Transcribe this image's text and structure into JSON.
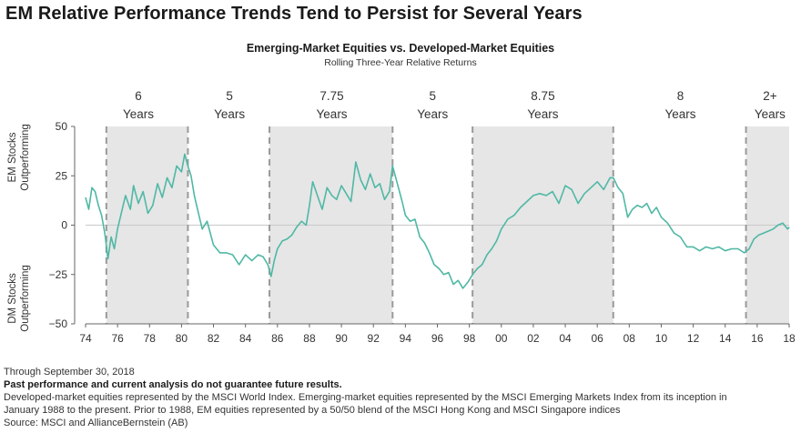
{
  "headline": "EM Relative Performance Trends Tend to Persist for Several Years",
  "chart_data": {
    "type": "line",
    "title": "Emerging-Market Equities vs. Developed-Market Equities",
    "subtitle": "Rolling Three-Year Relative Returns",
    "ylabel_top": [
      "EM Stocks",
      "Outperforming"
    ],
    "ylabel_bottom": [
      "DM Stocks",
      "Outperforming"
    ],
    "xlim": [
      1974,
      2018
    ],
    "ylim": [
      -50,
      50
    ],
    "yticks": [
      50,
      25,
      0,
      -25,
      -50
    ],
    "ytick_labels": [
      "50",
      "25",
      "0",
      "−25",
      "−50"
    ],
    "xticks": [
      1974,
      1976,
      1978,
      1980,
      1982,
      1984,
      1986,
      1988,
      1990,
      1992,
      1994,
      1996,
      1998,
      2000,
      2002,
      2004,
      2006,
      2008,
      2010,
      2012,
      2014,
      2016,
      2018
    ],
    "xtick_labels": [
      "74",
      "76",
      "78",
      "80",
      "82",
      "84",
      "86",
      "88",
      "90",
      "92",
      "94",
      "96",
      "98",
      "00",
      "02",
      "04",
      "06",
      "08",
      "10",
      "12",
      "14",
      "16",
      "18"
    ],
    "line_color": "#4fb8a5",
    "shade_color": "#e6e6e6",
    "shaded_periods": [
      [
        1975.3,
        1980.4
      ],
      [
        1985.5,
        1993.2
      ],
      [
        1998.2,
        2007.0
      ],
      [
        2015.3,
        2018.0
      ]
    ],
    "period_labels": [
      {
        "x": 1977.3,
        "line1": "6",
        "line2": "Years"
      },
      {
        "x": 1983.0,
        "line1": "5",
        "line2": "Years"
      },
      {
        "x": 1989.4,
        "line1": "7.75",
        "line2": "Years"
      },
      {
        "x": 1995.7,
        "line1": "5",
        "line2": "Years"
      },
      {
        "x": 2002.6,
        "line1": "8.75",
        "line2": "Years"
      },
      {
        "x": 2011.2,
        "line1": "8",
        "line2": "Years"
      },
      {
        "x": 2016.8,
        "line1": "2+",
        "line2": "Years"
      }
    ],
    "series": [
      {
        "x": [
          1974.0,
          1974.2,
          1974.4,
          1974.6,
          1974.8,
          1975.0,
          1975.2,
          1975.4,
          1975.6,
          1975.8,
          1976.0,
          1976.2,
          1976.5,
          1976.8,
          1977.0,
          1977.3,
          1977.6,
          1977.9,
          1978.2,
          1978.5,
          1978.8,
          1979.1,
          1979.4,
          1979.7,
          1980.0,
          1980.2,
          1980.4,
          1980.6,
          1980.8,
          1981.0,
          1981.3,
          1981.6,
          1982.0,
          1982.4,
          1982.8,
          1983.2,
          1983.6,
          1984.0,
          1984.4,
          1984.8,
          1985.1,
          1985.4,
          1985.6,
          1985.8,
          1986.0,
          1986.3,
          1986.6,
          1986.9,
          1987.2,
          1987.5,
          1987.8,
          1988.0,
          1988.2,
          1988.5,
          1988.8,
          1989.1,
          1989.4,
          1989.7,
          1990.0,
          1990.3,
          1990.6,
          1990.9,
          1991.2,
          1991.5,
          1991.8,
          1992.1,
          1992.4,
          1992.7,
          1993.0,
          1993.2,
          1993.4,
          1993.6,
          1993.8,
          1994.0,
          1994.3,
          1994.6,
          1994.9,
          1995.2,
          1995.5,
          1995.8,
          1996.1,
          1996.4,
          1996.7,
          1997.0,
          1997.3,
          1997.6,
          1997.9,
          1998.2,
          1998.5,
          1998.8,
          1999.1,
          1999.4,
          1999.7,
          2000.0,
          2000.4,
          2000.8,
          2001.2,
          2001.6,
          2002.0,
          2002.4,
          2002.8,
          2003.2,
          2003.6,
          2004.0,
          2004.4,
          2004.8,
          2005.2,
          2005.6,
          2006.0,
          2006.4,
          2006.8,
          2007.0,
          2007.3,
          2007.6,
          2007.9,
          2008.2,
          2008.5,
          2008.8,
          2009.1,
          2009.4,
          2009.7,
          2010.0,
          2010.4,
          2010.8,
          2011.2,
          2011.6,
          2012.0,
          2012.4,
          2012.8,
          2013.2,
          2013.6,
          2014.0,
          2014.4,
          2014.8,
          2015.2,
          2015.5,
          2015.8,
          2016.1,
          2016.4,
          2016.7,
          2017.0,
          2017.3,
          2017.6,
          2017.9,
          2018.0
        ],
        "y": [
          14,
          8,
          19,
          17,
          10,
          5,
          -4,
          -17,
          -6,
          -12,
          -2,
          5,
          15,
          8,
          20,
          11,
          17,
          6,
          10,
          21,
          14,
          24,
          19,
          30,
          27,
          36,
          30,
          25,
          15,
          8,
          -2,
          2,
          -10,
          -14,
          -14,
          -15,
          -20,
          -15,
          -18,
          -15,
          -16,
          -20,
          -26,
          -18,
          -12,
          -8,
          -7,
          -5,
          -1,
          2,
          0,
          10,
          22,
          15,
          8,
          19,
          15,
          13,
          20,
          16,
          12,
          32,
          23,
          18,
          26,
          19,
          21,
          13,
          17,
          30,
          24,
          18,
          12,
          5,
          2,
          3,
          -6,
          -9,
          -14,
          -20,
          -22,
          -25,
          -24,
          -30,
          -28,
          -32,
          -29,
          -25,
          -22,
          -20,
          -15,
          -12,
          -8,
          -2,
          3,
          5,
          9,
          12,
          15,
          16,
          15,
          17,
          11,
          20,
          18,
          11,
          16,
          19,
          22,
          18,
          24,
          24,
          19,
          16,
          4,
          8,
          10,
          9,
          11,
          6,
          9,
          4,
          1,
          -4,
          -6,
          -11,
          -11,
          -13,
          -11,
          -12,
          -11,
          -13,
          -12,
          -12,
          -14,
          -12,
          -7,
          -5,
          -4,
          -3,
          -2,
          0,
          1,
          -2,
          -1
        ]
      }
    ]
  },
  "footnotes": {
    "through": "Through September 30, 2018",
    "disclaimer": "Past performance and current analysis do not guarantee future results.",
    "line3": "Developed-market equities represented by the MSCI World Index. Emerging-market equities represented by the MSCI Emerging Markets Index from its inception in",
    "line4": "January 1988 to the present. Prior to 1988, EM equities represented by a 50/50 blend of the MSCI Hong Kong and MSCI Singapore indices",
    "source": "Source: MSCI and AllianceBernstein (AB)"
  }
}
